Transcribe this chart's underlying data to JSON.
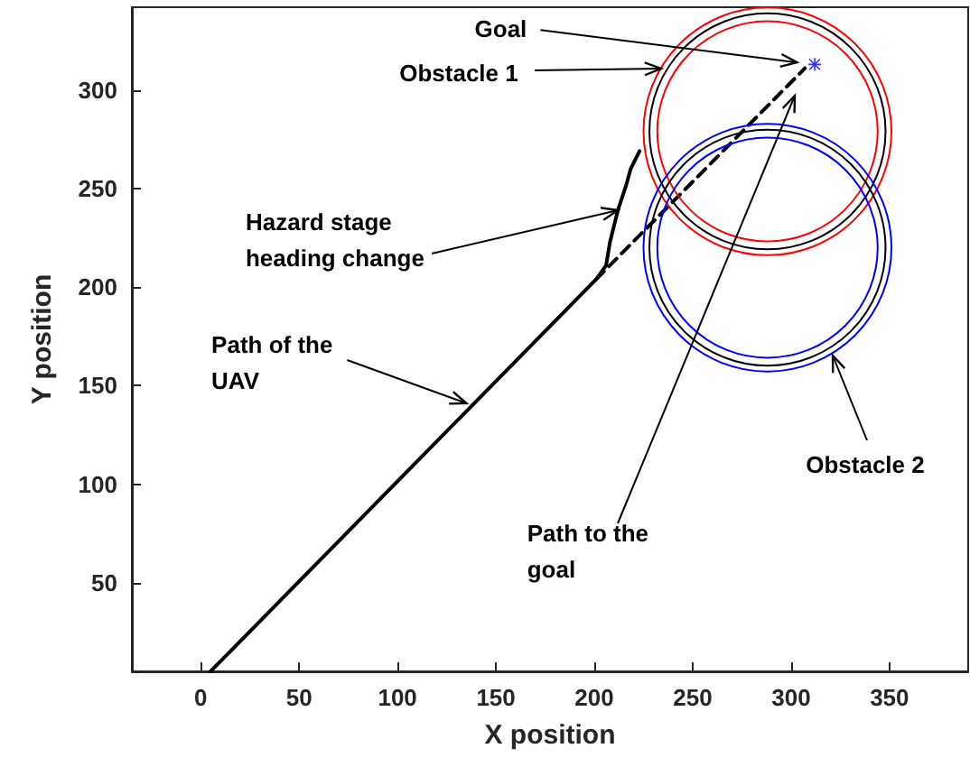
{
  "chart_data": {
    "type": "line",
    "xlabel": "X position",
    "ylabel": "Y position",
    "xlim": [
      -35,
      390
    ],
    "ylim": [
      5,
      342
    ],
    "xticks": [
      0,
      50,
      100,
      150,
      200,
      250,
      300,
      350
    ],
    "yticks": [
      50,
      100,
      150,
      200,
      250,
      300
    ],
    "grid": false,
    "line_style": "solid",
    "series": [
      {
        "color": "#000000",
        "x": [
          5,
          201,
          206,
          208,
          212,
          216,
          218.5,
          223
        ],
        "values": [
          5,
          204,
          211,
          223,
          239,
          251,
          260,
          269
        ]
      },
      {
        "color": "#000000",
        "line_style": "dashed",
        "x": [
          201,
          307
        ],
        "values": [
          204,
          311
        ]
      },
      {
        "type": "scatter",
        "marker": "cross",
        "color": "#0000ff",
        "x": [
          312
        ],
        "values": [
          313
        ]
      }
    ],
    "annotations": [
      {
        "text": "Goal",
        "x": 303,
        "y": 314
      },
      "Obstacle 1",
      {
        "text": "Hazard stage\nheading change",
        "x": 212,
        "y": 239
      },
      {
        "text": "Path of the\nUAV",
        "x": 135,
        "y": 141
      },
      "Path to the\ngoal",
      "Obstacle 2"
    ]
  }
}
